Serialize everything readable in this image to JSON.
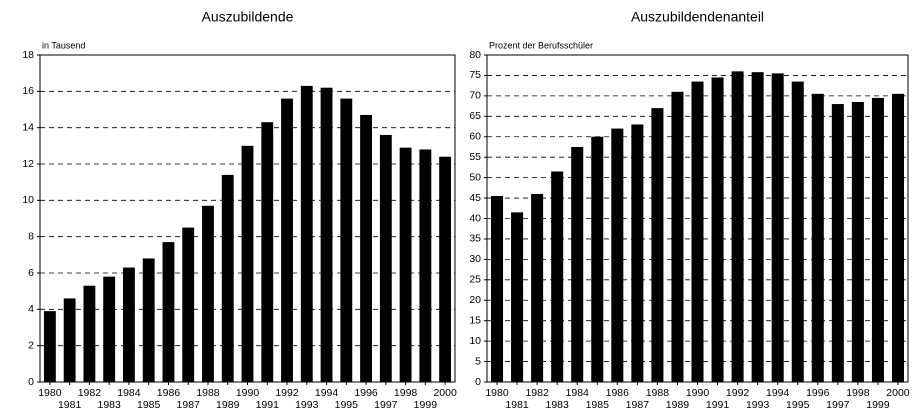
{
  "chart_data": [
    {
      "type": "bar",
      "title": "Auszubildende",
      "y_label": "in Tausend",
      "color": "#000000",
      "grid": true,
      "categories": [
        "1980",
        "1981",
        "1982",
        "1983",
        "1984",
        "1985",
        "1986",
        "1987",
        "1988",
        "1989",
        "1990",
        "1991",
        "1992",
        "1993",
        "1994",
        "1995",
        "1996",
        "1997",
        "1998",
        "1999",
        "2000"
      ],
      "values": [
        3.9,
        4.6,
        5.3,
        5.8,
        6.3,
        6.8,
        7.7,
        8.5,
        9.7,
        11.4,
        13.0,
        14.3,
        15.6,
        16.3,
        16.2,
        15.6,
        14.7,
        13.6,
        12.9,
        12.8,
        12.4
      ],
      "ylim": [
        0,
        18
      ],
      "yticks": [
        0,
        2,
        4,
        6,
        8,
        10,
        12,
        14,
        16,
        18
      ]
    },
    {
      "type": "bar",
      "title": "Auszubildendenanteil",
      "y_label": "Prozent der Berufsschüler",
      "color": "#000000",
      "grid": true,
      "categories": [
        "1980",
        "1981",
        "1982",
        "1983",
        "1984",
        "1985",
        "1986",
        "1987",
        "1988",
        "1989",
        "1990",
        "1991",
        "1992",
        "1993",
        "1994",
        "1995",
        "1996",
        "1997",
        "1998",
        "1999",
        "2000"
      ],
      "values": [
        45.5,
        41.5,
        46,
        51.5,
        57.5,
        60,
        62,
        63,
        67,
        71,
        73.5,
        74.5,
        76,
        75.8,
        75.5,
        73.5,
        70.5,
        68,
        68.5,
        69.5,
        70.5
      ],
      "ylim": [
        0,
        80
      ],
      "yticks": [
        0,
        5,
        10,
        15,
        20,
        25,
        30,
        35,
        40,
        45,
        50,
        55,
        60,
        65,
        70,
        75,
        80
      ]
    }
  ]
}
